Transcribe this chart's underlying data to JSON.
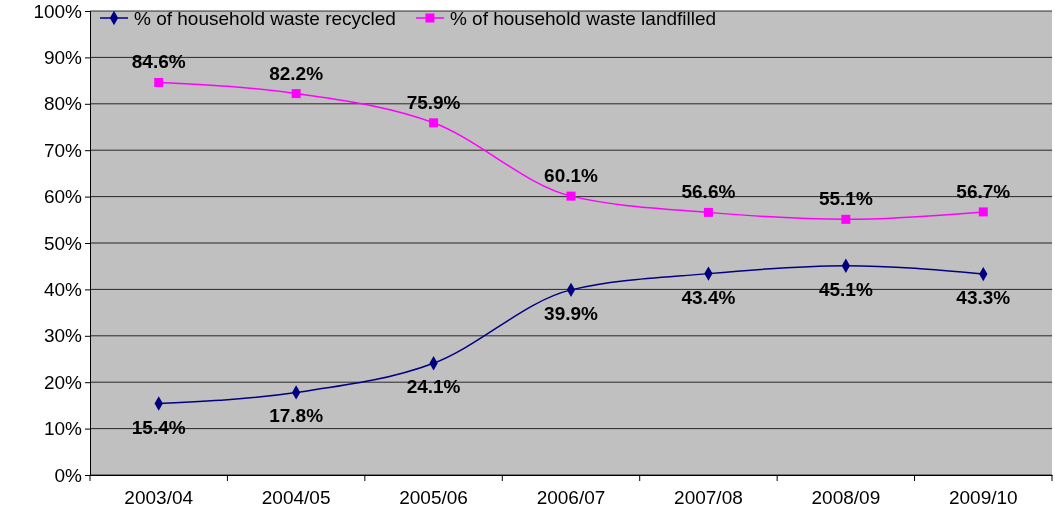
{
  "chart_data": {
    "type": "line",
    "categories": [
      "2003/04",
      "2004/05",
      "2005/06",
      "2006/07",
      "2007/08",
      "2008/09",
      "2009/10"
    ],
    "series": [
      {
        "name": "% of household waste recycled",
        "color": "#000080",
        "marker": "diamond",
        "values": [
          15.4,
          17.8,
          24.1,
          39.9,
          43.4,
          45.1,
          43.3
        ],
        "value_labels": [
          "15.4%",
          "17.8%",
          "24.1%",
          "39.9%",
          "43.4%",
          "45.1%",
          "43.3%"
        ]
      },
      {
        "name": "% of household waste landfilled",
        "color": "#ff00ff",
        "marker": "square",
        "values": [
          84.6,
          82.2,
          75.9,
          60.1,
          56.6,
          55.1,
          56.7
        ],
        "value_labels": [
          "84.6%",
          "82.2%",
          "75.9%",
          "60.1%",
          "56.6%",
          "55.1%",
          "56.7%"
        ]
      }
    ],
    "ylim": [
      0,
      100
    ],
    "yticks": [
      {
        "value": 0,
        "label": "0%"
      },
      {
        "value": 10,
        "label": "10%"
      },
      {
        "value": 20,
        "label": "20%"
      },
      {
        "value": 30,
        "label": "30%"
      },
      {
        "value": 40,
        "label": "40%"
      },
      {
        "value": 50,
        "label": "50%"
      },
      {
        "value": 60,
        "label": "60%"
      },
      {
        "value": 70,
        "label": "70%"
      },
      {
        "value": 80,
        "label": "80%"
      },
      {
        "value": 90,
        "label": "90%"
      },
      {
        "value": 100,
        "label": "100%"
      }
    ],
    "grid": "y",
    "legend": "top left"
  }
}
